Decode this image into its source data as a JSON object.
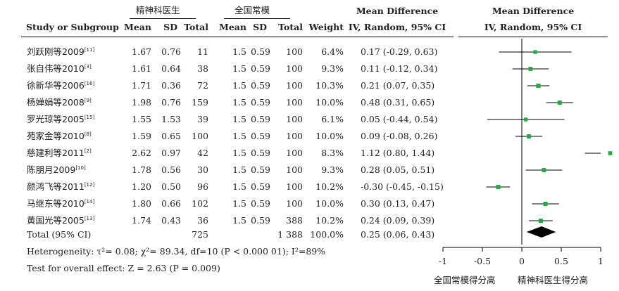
{
  "header": {
    "group1": "精神科医生",
    "group2": "全国常模",
    "col_study": "Study or Subgroup",
    "col_mean1": "Mean",
    "col_sd1": "SD",
    "col_total1": "Total",
    "col_mean2": "Mean",
    "col_sd2": "SD",
    "col_total2": "Total",
    "col_weight": "Weight",
    "md_title": "Mean Difference",
    "md_method": "IV, Random, 95% CI",
    "plot_title": "Mean Difference",
    "plot_method": "IV, Random, 95% CI"
  },
  "studies": [
    {
      "name": "刘跃刚等2009",
      "ref": "[11]",
      "mean1": "1.67",
      "sd1": "0.76",
      "n1": "11",
      "mean2": "1.5",
      "sd2": "0.59",
      "n2": "100",
      "weight": "6.4%",
      "ci": "0.17 (-0.29, 0.63)"
    },
    {
      "name": "张自伟等2010",
      "ref": "[3]",
      "mean1": "1.61",
      "sd1": "0.64",
      "n1": "38",
      "mean2": "1.5",
      "sd2": "0.59",
      "n2": "100",
      "weight": "9.3%",
      "ci": "0.11 (-0.12, 0.34)"
    },
    {
      "name": "徐新华等2006",
      "ref": "[16]",
      "mean1": "1.71",
      "sd1": "0.36",
      "n1": "72",
      "mean2": "1.5",
      "sd2": "0.59",
      "n2": "100",
      "weight": "10.3%",
      "ci": "0.21 (0.07, 0.35)"
    },
    {
      "name": "杨婵娟等2008",
      "ref": "[9]",
      "mean1": "1.98",
      "sd1": "0.76",
      "n1": "159",
      "mean2": "1.5",
      "sd2": "0.59",
      "n2": "100",
      "weight": "10.0%",
      "ci": "0.48 (0.31, 0.65)"
    },
    {
      "name": "罗光琼等2005",
      "ref": "[15]",
      "mean1": "1.55",
      "sd1": "1.53",
      "n1": "39",
      "mean2": "1.5",
      "sd2": "0.59",
      "n2": "100",
      "weight": "6.1%",
      "ci": "0.05 (-0.44, 0.54)"
    },
    {
      "name": "苑家金等2010",
      "ref": "[8]",
      "mean1": "1.59",
      "sd1": "0.65",
      "n1": "100",
      "mean2": "1.5",
      "sd2": "0.59",
      "n2": "100",
      "weight": "10.0%",
      "ci": "0.09 (-0.08, 0.26)"
    },
    {
      "name": "慈建利等2011",
      "ref": "[2]",
      "mean1": "2.62",
      "sd1": "0.97",
      "n1": "42",
      "mean2": "1.5",
      "sd2": "0.59",
      "n2": "100",
      "weight": "8.3%",
      "ci": "1.12 (0.80, 1.44)"
    },
    {
      "name": "陈朋月2009",
      "ref": "[10]",
      "mean1": "1.78",
      "sd1": "0.56",
      "n1": "30",
      "mean2": "1.5",
      "sd2": "0.59",
      "n2": "100",
      "weight": "9.3%",
      "ci": "0.28 (0.05, 0.51)"
    },
    {
      "name": "颜鸿飞等2011",
      "ref": "[12]",
      "mean1": "1.20",
      "sd1": "0.50",
      "n1": "96",
      "mean2": "1.5",
      "sd2": "0.59",
      "n2": "100",
      "weight": "10.2%",
      "ci": "-0.30 (-0.45, -0.15)"
    },
    {
      "name": "马继东等2010",
      "ref": "[14]",
      "mean1": "1.80",
      "sd1": "0.66",
      "n1": "102",
      "mean2": "1.5",
      "sd2": "0.59",
      "n2": "100",
      "weight": "10.0%",
      "ci": "0.30 (0.13, 0.47)"
    },
    {
      "name": "黄国光等2005",
      "ref": "[13]",
      "mean1": "1.74",
      "sd1": "0.43",
      "n1": "36",
      "mean2": "1.5",
      "sd2": "0.59",
      "n2": "388",
      "weight": "10.2%",
      "ci": "0.24 (0.09, 0.39)"
    }
  ],
  "total": {
    "label": "Total (95% CI)",
    "n1": "725",
    "n2": "1 388",
    "weight": "100.0%",
    "ci": "0.25 (0.06, 0.43)"
  },
  "footer": {
    "heterogeneity": "Heterogeneity: τ²= 0.08;  χ²= 89.34,  df=10 (P < 0.000 01); I²=89%",
    "overall": "Test for overall effect: Z = 2.63 (P = 0.009)"
  },
  "colors": {
    "marker": "#22aa44",
    "line": "#000000",
    "diamond": "#000000"
  },
  "chart_data": {
    "type": "forest",
    "x_ticks": [
      "-1",
      "-0.5",
      "0",
      "0.5",
      "1"
    ],
    "xlim": [
      -1,
      1
    ],
    "xlabel_left": "全国常模得分高",
    "xlabel_right": "精神科医生得分高",
    "series": [
      {
        "md": 0.17,
        "lo": -0.29,
        "hi": 0.63,
        "weight": 6.4
      },
      {
        "md": 0.11,
        "lo": -0.12,
        "hi": 0.34,
        "weight": 9.3
      },
      {
        "md": 0.21,
        "lo": 0.07,
        "hi": 0.35,
        "weight": 10.3
      },
      {
        "md": 0.48,
        "lo": 0.31,
        "hi": 0.65,
        "weight": 10.0
      },
      {
        "md": 0.05,
        "lo": -0.44,
        "hi": 0.54,
        "weight": 6.1
      },
      {
        "md": 0.09,
        "lo": -0.08,
        "hi": 0.26,
        "weight": 10.0
      },
      {
        "md": 1.12,
        "lo": 0.8,
        "hi": 1.44,
        "weight": 8.3
      },
      {
        "md": 0.28,
        "lo": 0.05,
        "hi": 0.51,
        "weight": 9.3
      },
      {
        "md": -0.3,
        "lo": -0.45,
        "hi": -0.15,
        "weight": 10.2
      },
      {
        "md": 0.3,
        "lo": 0.13,
        "hi": 0.47,
        "weight": 10.0
      },
      {
        "md": 0.24,
        "lo": 0.09,
        "hi": 0.39,
        "weight": 10.2
      }
    ],
    "pooled": {
      "md": 0.25,
      "lo": 0.06,
      "hi": 0.43
    }
  }
}
